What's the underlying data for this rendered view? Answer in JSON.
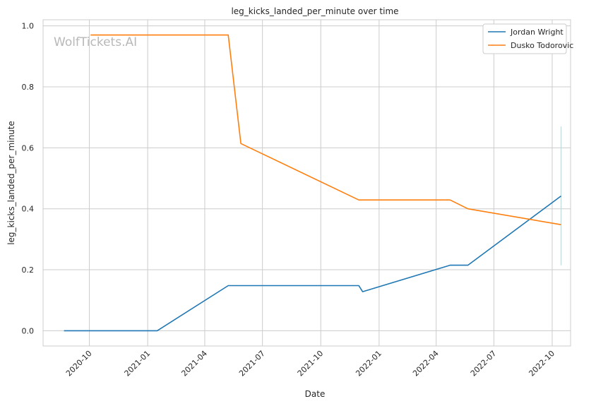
{
  "chart_data": {
    "type": "line",
    "title": "leg_kicks_landed_per_minute over time",
    "xlabel": "Date",
    "ylabel": "leg_kicks_landed_per_minute",
    "watermark": "WolfTickets.AI",
    "x_ticks": [
      "2020-10",
      "2021-01",
      "2021-04",
      "2021-07",
      "2021-10",
      "2022-01",
      "2022-04",
      "2022-07",
      "2022-10"
    ],
    "y_ticks": [
      "0.0",
      "0.2",
      "0.4",
      "0.6",
      "0.8",
      "1.0"
    ],
    "ylim": [
      -0.05,
      1.02
    ],
    "xlim": [
      "2020-07-20",
      "2022-10-30"
    ],
    "grid": true,
    "legend_position": "top-right",
    "series": [
      {
        "name": "Jordan Wright",
        "color": "#1f77b4",
        "points": [
          {
            "x": "2020-08-22",
            "y": 0.0
          },
          {
            "x": "2021-01-16",
            "y": 0.0
          },
          {
            "x": "2021-05-08",
            "y": 0.148
          },
          {
            "x": "2021-11-30",
            "y": 0.148
          },
          {
            "x": "2021-12-06",
            "y": 0.128
          },
          {
            "x": "2022-04-23",
            "y": 0.215
          },
          {
            "x": "2022-05-21",
            "y": 0.215
          },
          {
            "x": "2022-10-15",
            "y": 0.442
          }
        ]
      },
      {
        "name": "Dusko Todorovic",
        "color": "#ff7f0e",
        "points": [
          {
            "x": "2020-10-03",
            "y": 0.97
          },
          {
            "x": "2021-05-08",
            "y": 0.97
          },
          {
            "x": "2021-05-28",
            "y": 0.614
          },
          {
            "x": "2021-11-30",
            "y": 0.429
          },
          {
            "x": "2022-04-23",
            "y": 0.429
          },
          {
            "x": "2022-05-21",
            "y": 0.4
          },
          {
            "x": "2022-10-15",
            "y": 0.348
          }
        ]
      }
    ],
    "error_band": {
      "x": "2022-10-15",
      "y_low": 0.215,
      "y_high": 0.67
    }
  }
}
